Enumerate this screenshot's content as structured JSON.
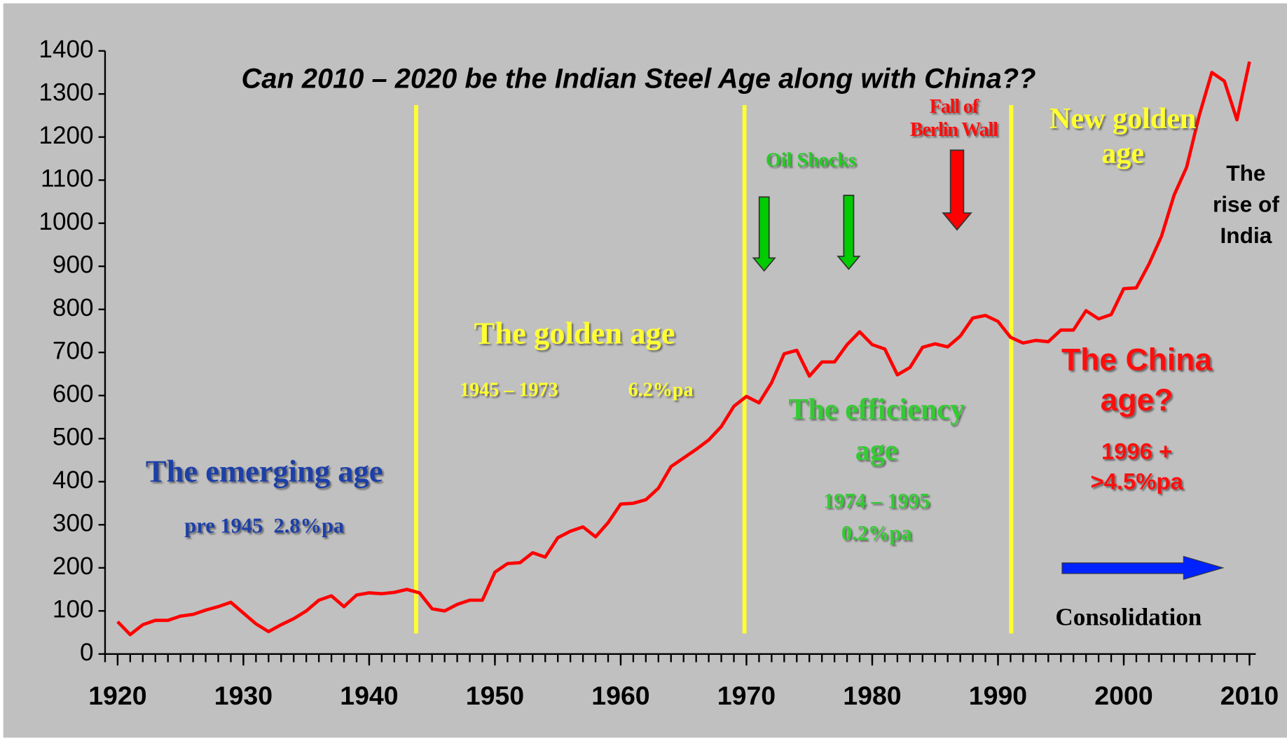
{
  "chart_data": {
    "type": "line",
    "title": "Can 2010 – 2020 be the Indian Steel Age along with China??",
    "x": [
      1920,
      1921,
      1922,
      1923,
      1924,
      1925,
      1926,
      1927,
      1928,
      1929,
      1930,
      1931,
      1932,
      1933,
      1934,
      1935,
      1936,
      1937,
      1938,
      1939,
      1940,
      1941,
      1942,
      1943,
      1944,
      1945,
      1946,
      1947,
      1948,
      1949,
      1950,
      1951,
      1952,
      1953,
      1954,
      1955,
      1956,
      1957,
      1958,
      1959,
      1960,
      1961,
      1962,
      1963,
      1964,
      1965,
      1966,
      1967,
      1968,
      1969,
      1970,
      1971,
      1972,
      1973,
      1974,
      1975,
      1976,
      1977,
      1978,
      1979,
      1980,
      1981,
      1982,
      1983,
      1984,
      1985,
      1986,
      1987,
      1988,
      1989,
      1990,
      1991,
      1992,
      1993,
      1994,
      1995,
      1996,
      1997,
      1998,
      1999,
      2000,
      2001,
      2002,
      2003,
      2004,
      2005,
      2006,
      2007,
      2008,
      2009,
      2010
    ],
    "values": [
      75,
      45,
      68,
      78,
      78,
      88,
      92,
      102,
      110,
      120,
      95,
      70,
      52,
      68,
      82,
      100,
      125,
      135,
      110,
      137,
      142,
      140,
      143,
      150,
      142,
      105,
      100,
      115,
      125,
      125,
      190,
      210,
      212,
      235,
      225,
      270,
      285,
      295,
      272,
      305,
      348,
      350,
      358,
      385,
      435,
      455,
      475,
      497,
      528,
      575,
      598,
      583,
      630,
      697,
      705,
      645,
      678,
      678,
      718,
      748,
      718,
      708,
      648,
      665,
      712,
      720,
      713,
      738,
      780,
      786,
      772,
      735,
      722,
      728,
      725,
      752,
      752,
      797,
      778,
      788,
      848,
      850,
      905,
      970,
      1065,
      1130,
      1250,
      1350,
      1330,
      1240,
      1375
    ],
    "color": "#ff0000",
    "xlim": [
      1919,
      2010.5
    ],
    "xticks": [
      1920,
      1930,
      1940,
      1950,
      1960,
      1970,
      1980,
      1990,
      2000,
      2010
    ],
    "ylim": [
      0,
      1400
    ],
    "yticks": [
      0,
      100,
      200,
      300,
      400,
      500,
      600,
      700,
      800,
      900,
      1000,
      1100,
      1200,
      1300,
      1400
    ],
    "annotations": [
      {
        "lines": [
          "The emerging age"
        ],
        "color": "#1f3fa8"
      },
      {
        "lines": [
          "pre 1945  2.8%pa"
        ],
        "color": "#1f3fa8"
      },
      {
        "lines": [
          "The golden age"
        ],
        "color": "#ffff33"
      },
      {
        "lines": [
          "1945 – 1973"
        ],
        "color": "#ffff33"
      },
      {
        "lines": [
          "6.2%pa"
        ],
        "color": "#ffff33"
      },
      {
        "lines": [
          "Oil Shocks"
        ],
        "color": "#22cc22"
      },
      {
        "lines": [
          "Fall of",
          "Berlin Wall"
        ],
        "color": "#ff1111"
      },
      {
        "lines": [
          "New golden",
          "age"
        ],
        "color": "#ffff33"
      },
      {
        "lines": [
          "The",
          "rise of",
          "India"
        ],
        "color": "#000000"
      },
      {
        "lines": [
          "The efficiency",
          "age"
        ],
        "color": "#33cc33"
      },
      {
        "lines": [
          "1974 – 1995",
          "0.2%pa"
        ],
        "color": "#33cc33"
      },
      {
        "lines": [
          "The China",
          "age?"
        ],
        "color": "#ff1111"
      },
      {
        "lines": [
          "1996 +",
          ">4.5%pa"
        ],
        "color": "#ff1111"
      },
      {
        "lines": [
          "Consolidation"
        ],
        "color": "#000000"
      }
    ]
  }
}
